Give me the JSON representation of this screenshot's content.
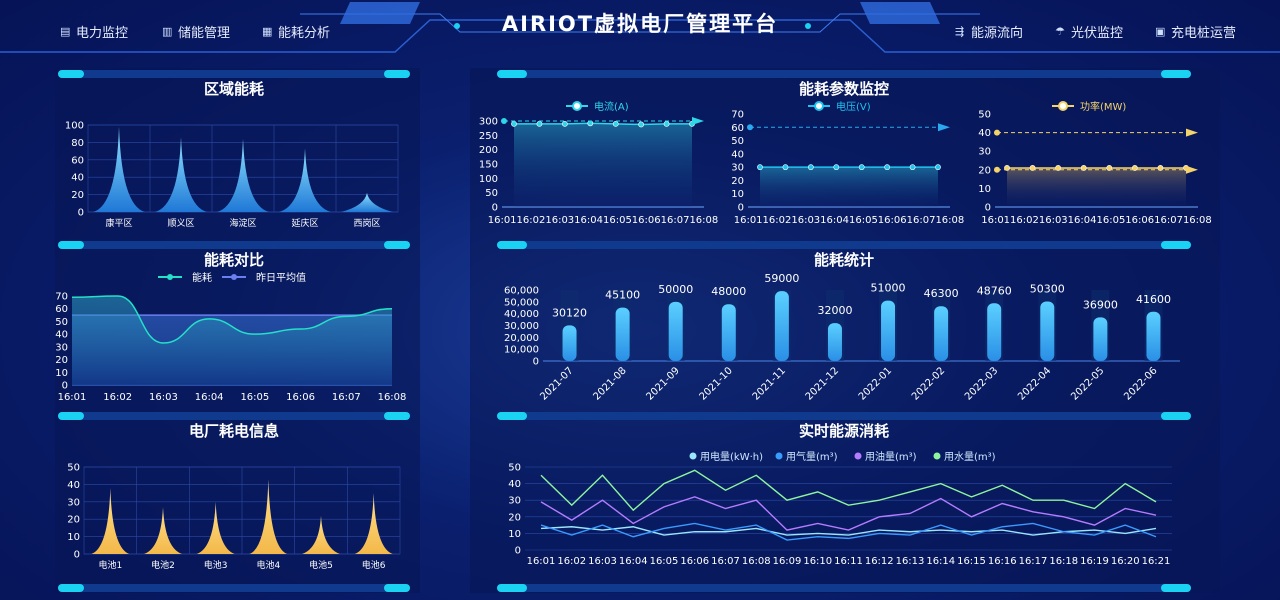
{
  "header": {
    "title": "AIRIOT虚拟电厂管理平台",
    "nav_left": [
      {
        "label": "电力监控",
        "icon": "monitor-icon"
      },
      {
        "label": "储能管理",
        "icon": "storage-icon"
      },
      {
        "label": "能耗分析",
        "icon": "analysis-icon"
      }
    ],
    "nav_right": [
      {
        "label": "能源流向",
        "icon": "flow-icon"
      },
      {
        "label": "光伏监控",
        "icon": "solar-icon"
      },
      {
        "label": "充电桩运营",
        "icon": "charger-icon"
      }
    ]
  },
  "colors": {
    "accent": "#1ad3f3",
    "bg": "#07155a",
    "yellow": "#f5c45a",
    "green": "#8df59d",
    "purple": "#b57cff",
    "blue": "#3a9bff"
  },
  "panels": {
    "region": "区域能耗",
    "compare": "能耗对比",
    "plant": "电厂耗电信息",
    "params": "能耗参数监控",
    "stats": "能耗统计",
    "realtime": "实时能源消耗"
  },
  "chart_data": [
    {
      "id": "region",
      "type": "area",
      "title": "区域能耗",
      "categories": [
        "康平区",
        "顺义区",
        "海淀区",
        "延庆区",
        "西岗区"
      ],
      "values": [
        98,
        86,
        84,
        73,
        22
      ],
      "ylim": [
        0,
        100
      ],
      "yticks": [
        "0",
        "20",
        "40",
        "60",
        "80",
        "100"
      ]
    },
    {
      "id": "compare",
      "type": "line",
      "title": "能耗对比",
      "categories": [
        "16:01",
        "16:02",
        "16:03",
        "16:04",
        "16:05",
        "16:06",
        "16:07",
        "16:08"
      ],
      "series": [
        {
          "name": "能耗",
          "values": [
            69,
            70,
            33,
            52,
            40,
            44,
            54,
            60
          ]
        },
        {
          "name": "昨日平均值",
          "values": [
            55,
            55,
            55,
            55,
            55,
            55,
            55,
            55
          ]
        }
      ],
      "ylim": [
        0,
        70
      ],
      "yticks": [
        "0",
        "10",
        "20",
        "30",
        "40",
        "50",
        "60",
        "70"
      ]
    },
    {
      "id": "plant",
      "type": "area",
      "title": "电厂耗电信息",
      "categories": [
        "电池1",
        "电池2",
        "电池3",
        "电池4",
        "电池5",
        "电池6"
      ],
      "values": [
        38,
        27,
        30,
        43,
        22,
        35
      ],
      "ylim": [
        0,
        50
      ],
      "yticks": [
        "0",
        "10",
        "20",
        "30",
        "40",
        "50"
      ]
    },
    {
      "id": "current",
      "type": "line",
      "categories": [
        "16:01",
        "16:02",
        "16:03",
        "16:04",
        "16:05",
        "16:06",
        "16:07",
        "16:08"
      ],
      "series": [
        {
          "name": "电流(A)",
          "values": [
            290,
            290,
            290,
            292,
            290,
            288,
            290,
            290
          ]
        }
      ],
      "markline": 300,
      "ylim": [
        0,
        300
      ],
      "yticks": [
        "0",
        "50",
        "100",
        "150",
        "200",
        "250",
        "300"
      ]
    },
    {
      "id": "voltage",
      "type": "line",
      "categories": [
        "16:01",
        "16:02",
        "16:03",
        "16:04",
        "16:05",
        "16:06",
        "16:07",
        "16:08"
      ],
      "series": [
        {
          "name": "电压(V)",
          "values": [
            30,
            30,
            30,
            30,
            30,
            30,
            30,
            30
          ]
        }
      ],
      "markline": 60,
      "ylim": [
        0,
        70
      ],
      "yticks": [
        "0",
        "10",
        "20",
        "30",
        "40",
        "50",
        "60",
        "70"
      ]
    },
    {
      "id": "power",
      "type": "line",
      "categories": [
        "16:01",
        "16:02",
        "16:03",
        "16:04",
        "16:05",
        "16:06",
        "16:07",
        "16:08"
      ],
      "series": [
        {
          "name": "功率(MW)",
          "values": [
            21,
            21,
            21,
            21,
            21,
            21,
            21,
            21
          ]
        }
      ],
      "markline": 40,
      "markline2": 20,
      "ylim": [
        0,
        50
      ],
      "yticks": [
        "0",
        "10",
        "20",
        "30",
        "40",
        "50"
      ]
    },
    {
      "id": "stats",
      "type": "bar",
      "title": "能耗统计",
      "categories": [
        "2021-07",
        "2021-08",
        "2021-09",
        "2021-10",
        "2021-11",
        "2021-12",
        "2022-01",
        "2022-02",
        "2022-03",
        "2022-04",
        "2022-05",
        "2022-06"
      ],
      "values": [
        30120,
        45100,
        50000,
        48000,
        59000,
        32000,
        51000,
        46300,
        48760,
        50300,
        36900,
        41600
      ],
      "labels": [
        "30120",
        "45100",
        "50000",
        "48000",
        "59000",
        "32000",
        "51000",
        "46300",
        "48760",
        "50300",
        "36900",
        "41600"
      ],
      "ylim": [
        0,
        60000
      ],
      "yticks": [
        "0",
        "10,000",
        "20,000",
        "30,000",
        "40,000",
        "50,000",
        "60,000"
      ]
    },
    {
      "id": "realtime",
      "type": "line",
      "title": "实时能源消耗",
      "categories": [
        "16:01",
        "16:02",
        "16:03",
        "16:04",
        "16:05",
        "16:06",
        "16:07",
        "16:08",
        "16:09",
        "16:10",
        "16:11",
        "16:12",
        "16:13",
        "16:14",
        "16:15",
        "16:16",
        "16:17",
        "16:18",
        "16:19",
        "16:20",
        "16:21"
      ],
      "series": [
        {
          "name": "用电量(kW·h)",
          "values": [
            13,
            14,
            12,
            14,
            9,
            11,
            11,
            13,
            9,
            10,
            9,
            12,
            11,
            12,
            11,
            12,
            9,
            11,
            12,
            10,
            13
          ]
        },
        {
          "name": "用气量(m³)",
          "values": [
            15,
            9,
            15,
            8,
            13,
            16,
            12,
            15,
            6,
            8,
            7,
            10,
            9,
            15,
            9,
            14,
            16,
            11,
            9,
            15,
            8
          ]
        },
        {
          "name": "用油量(m³)",
          "values": [
            29,
            18,
            30,
            16,
            26,
            32,
            25,
            30,
            12,
            16,
            12,
            20,
            22,
            31,
            20,
            28,
            23,
            20,
            15,
            25,
            21
          ]
        },
        {
          "name": "用水量(m³)",
          "values": [
            45,
            27,
            45,
            24,
            40,
            48,
            36,
            45,
            30,
            35,
            27,
            30,
            35,
            40,
            32,
            39,
            30,
            30,
            25,
            40,
            29
          ]
        }
      ],
      "ylim": [
        0,
        50
      ],
      "yticks": [
        "0",
        "10",
        "20",
        "30",
        "40",
        "50"
      ]
    }
  ]
}
